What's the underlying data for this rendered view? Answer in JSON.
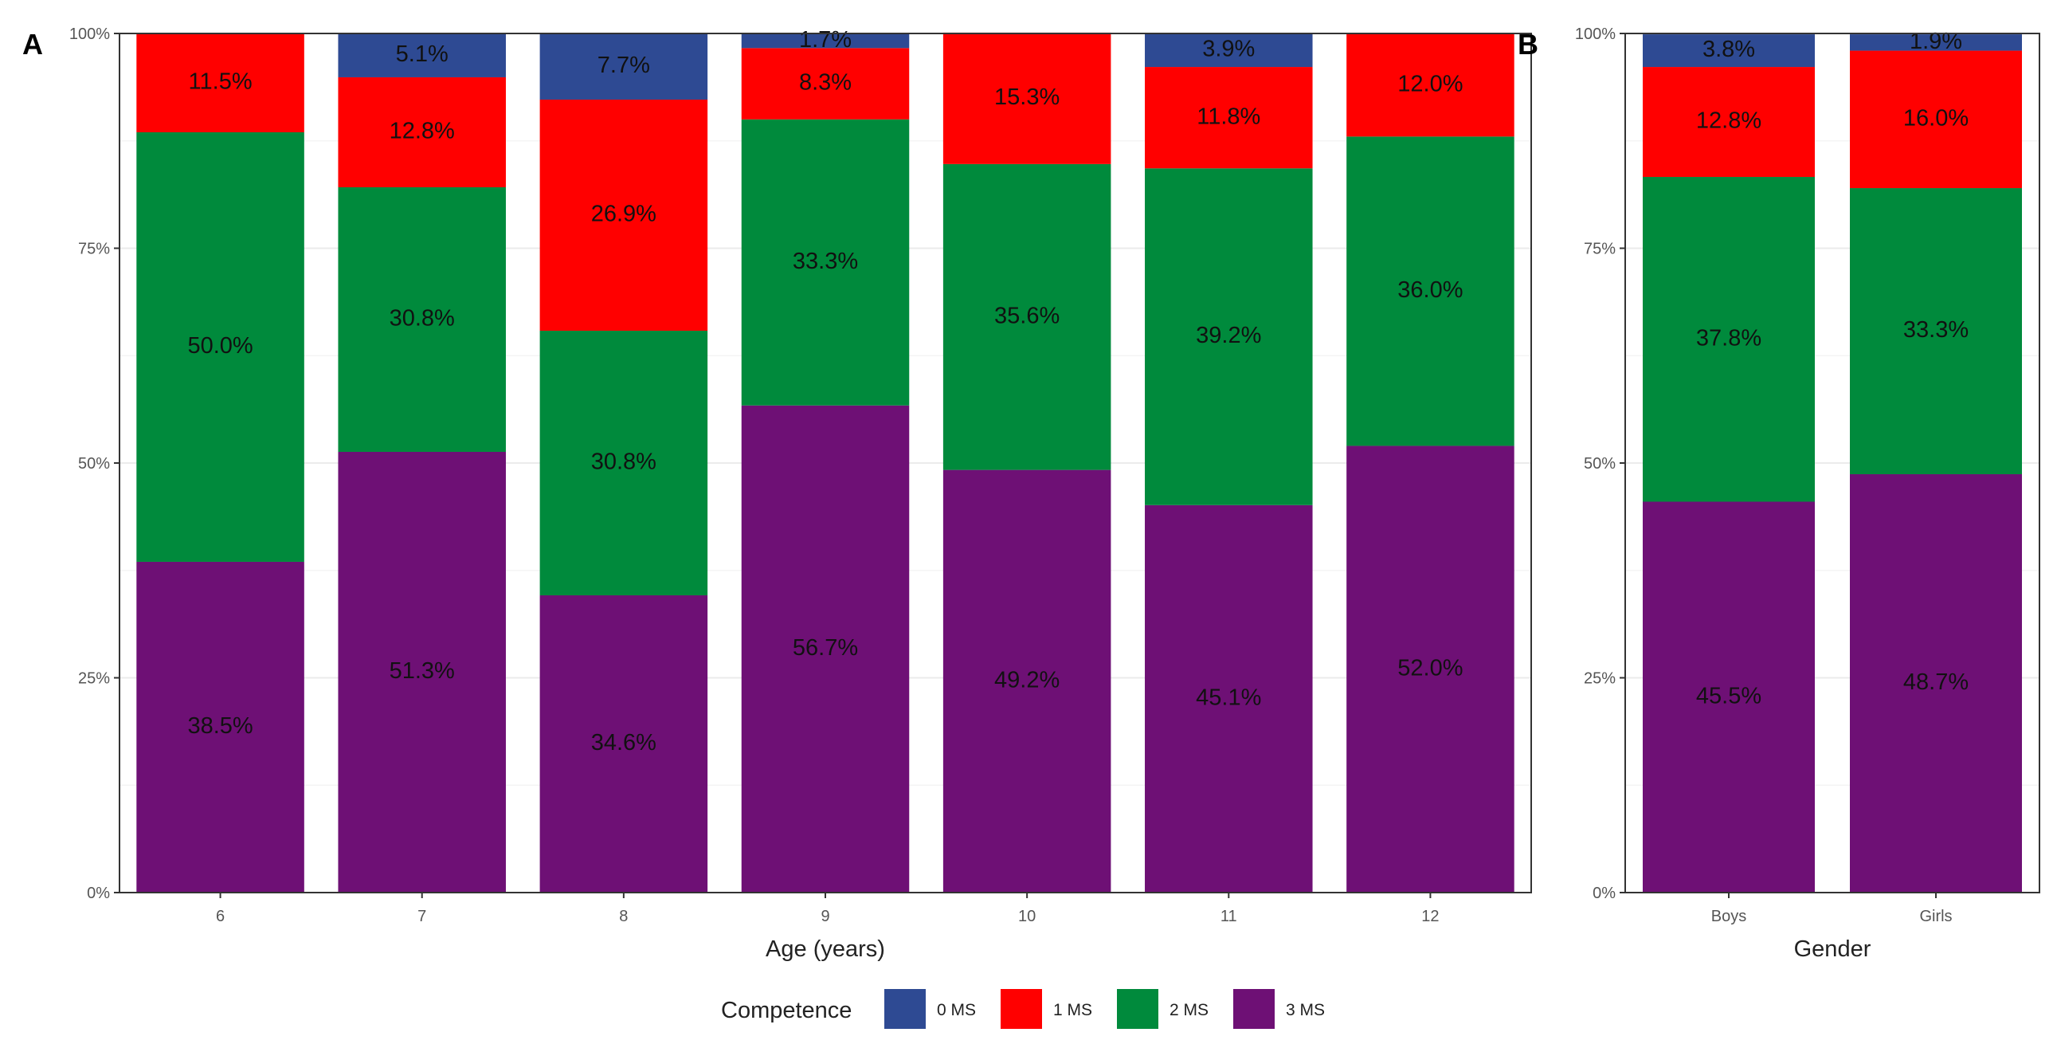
{
  "legend": {
    "title": "Competence",
    "position": "bottom",
    "items": [
      {
        "key": "s0",
        "label": "0 MS",
        "color": "#2E4A93"
      },
      {
        "key": "s1",
        "label": "1 MS",
        "color": "#FF0000"
      },
      {
        "key": "s2",
        "label": "2 MS",
        "color": "#008A3C"
      },
      {
        "key": "s3",
        "label": "3 MS",
        "color": "#6E1075"
      }
    ]
  },
  "chart_data": [
    {
      "type": "bar",
      "stacked": true,
      "panel_label": "A",
      "xlabel": "Age (years)",
      "ylabel": "",
      "ylim": [
        0,
        100
      ],
      "yticks": [
        "0%",
        "25%",
        "50%",
        "75%",
        "100%"
      ],
      "grid": true,
      "categories": [
        "6",
        "7",
        "8",
        "9",
        "10",
        "11",
        "12"
      ],
      "series": [
        {
          "name": "3 MS",
          "key": "s3",
          "values": [
            38.5,
            51.3,
            34.6,
            56.7,
            49.2,
            45.1,
            52.0
          ],
          "labels": [
            "38.5%",
            "51.3%",
            "34.6%",
            "56.7%",
            "49.2%",
            "45.1%",
            "52.0%"
          ]
        },
        {
          "name": "2 MS",
          "key": "s2",
          "values": [
            50.0,
            30.8,
            30.8,
            33.3,
            35.6,
            39.2,
            36.0
          ],
          "labels": [
            "50.0%",
            "30.8%",
            "30.8%",
            "33.3%",
            "35.6%",
            "39.2%",
            "36.0%"
          ]
        },
        {
          "name": "1 MS",
          "key": "s1",
          "values": [
            11.5,
            12.8,
            26.9,
            8.3,
            15.3,
            11.8,
            12.0
          ],
          "labels": [
            "11.5%",
            "12.8%",
            "26.9%",
            "8.3%",
            "15.3%",
            "11.8%",
            "12.0%"
          ]
        },
        {
          "name": "0 MS",
          "key": "s0",
          "values": [
            0,
            5.1,
            7.7,
            1.7,
            0,
            3.9,
            0
          ],
          "labels": [
            "",
            "5.1%",
            "7.7%",
            "1.7%",
            "",
            "3.9%",
            ""
          ]
        }
      ]
    },
    {
      "type": "bar",
      "stacked": true,
      "panel_label": "B",
      "xlabel": "Gender",
      "ylabel": "",
      "ylim": [
        0,
        100
      ],
      "yticks": [
        "0%",
        "25%",
        "50%",
        "75%",
        "100%"
      ],
      "grid": true,
      "categories": [
        "Boys",
        "Girls"
      ],
      "series": [
        {
          "name": "3 MS",
          "key": "s3",
          "values": [
            45.5,
            48.7
          ],
          "labels": [
            "45.5%",
            "48.7%"
          ]
        },
        {
          "name": "2 MS",
          "key": "s2",
          "values": [
            37.8,
            33.3
          ],
          "labels": [
            "37.8%",
            "33.3%"
          ]
        },
        {
          "name": "1 MS",
          "key": "s1",
          "values": [
            12.8,
            16.0
          ],
          "labels": [
            "12.8%",
            "16.0%"
          ]
        },
        {
          "name": "0 MS",
          "key": "s0",
          "values": [
            3.8,
            1.9
          ],
          "labels": [
            "3.8%",
            "1.9%"
          ]
        }
      ]
    }
  ]
}
